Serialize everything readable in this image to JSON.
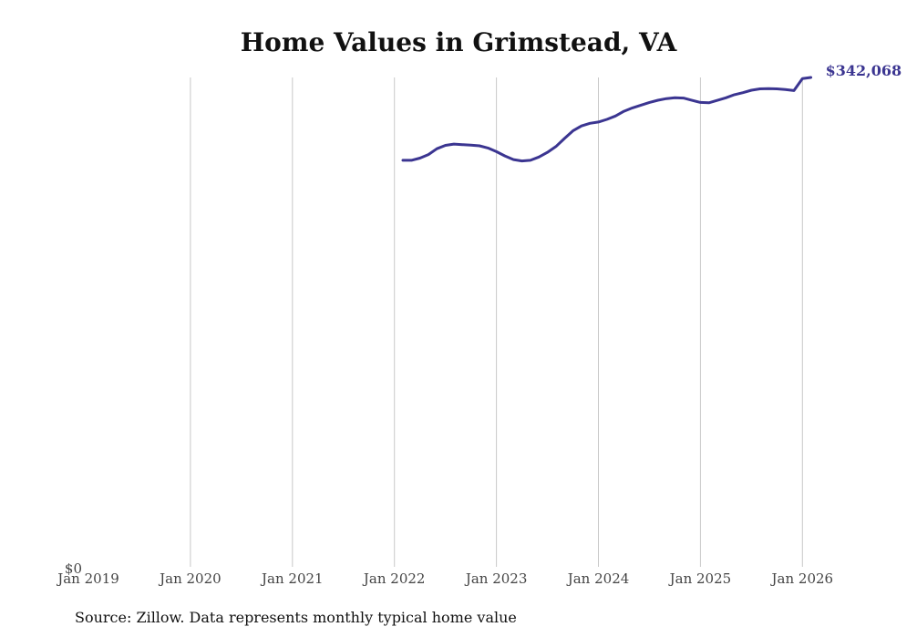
{
  "chart_data": {
    "type": "line",
    "title": "Home Values in Grimstead, VA",
    "xlabel": "",
    "ylabel": "",
    "x_ticks": [
      "Jan 2019",
      "Jan 2020",
      "Jan 2021",
      "Jan 2022",
      "Jan 2023",
      "Jan 2024",
      "Jan 2025",
      "Jan 2026"
    ],
    "y_tick_label": "$0",
    "ylim": [
      0,
      350000
    ],
    "grid": "vertical",
    "legend": "none",
    "line_color": "#3b3591",
    "series": [
      {
        "x": [
          "2022-02",
          "2022-03",
          "2022-04",
          "2022-05",
          "2022-06",
          "2022-07",
          "2022-08",
          "2022-09",
          "2022-10",
          "2022-11",
          "2022-12",
          "2023-01",
          "2023-02",
          "2023-03",
          "2023-04",
          "2023-05",
          "2023-06",
          "2023-07",
          "2023-08",
          "2023-09",
          "2023-10",
          "2023-11",
          "2023-12",
          "2024-01",
          "2024-02",
          "2024-03",
          "2024-04",
          "2024-05",
          "2024-06",
          "2024-07",
          "2024-08",
          "2024-09",
          "2024-10",
          "2024-11",
          "2024-12",
          "2025-01",
          "2025-02",
          "2025-03",
          "2025-04",
          "2025-05",
          "2025-06",
          "2025-07",
          "2025-08",
          "2025-09",
          "2025-10",
          "2025-11",
          "2025-12",
          "2026-01",
          "2026-02"
        ],
        "values": [
          285000,
          285000,
          286500,
          289000,
          293000,
          295300,
          296200,
          295800,
          295500,
          295000,
          293500,
          291000,
          288000,
          285500,
          284600,
          285000,
          287300,
          290500,
          294500,
          300000,
          305300,
          308700,
          310500,
          311400,
          313200,
          315500,
          318800,
          321100,
          323000,
          324900,
          326400,
          327500,
          328100,
          327900,
          326300,
          324900,
          324600,
          326300,
          328100,
          330200,
          331600,
          333300,
          334200,
          334400,
          334200,
          333800,
          333000,
          341300,
          342068
        ]
      }
    ],
    "end_label": "$342,068"
  },
  "footer": {
    "source": "Source: Zillow. Data represents monthly typical home value"
  }
}
